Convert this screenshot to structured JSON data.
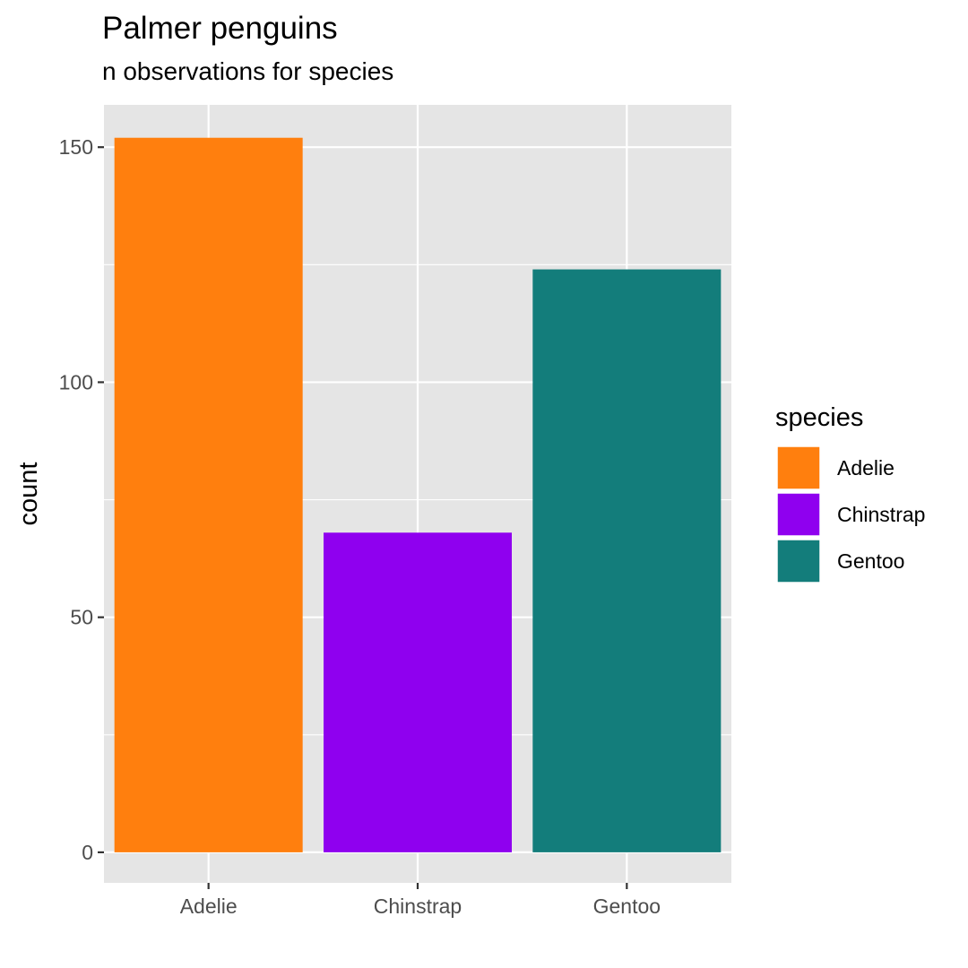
{
  "chart_data": {
    "type": "bar",
    "title": "Palmer penguins",
    "subtitle": "n observations for species",
    "xlabel": "",
    "ylabel": "count",
    "categories": [
      "Adelie",
      "Chinstrap",
      "Gentoo"
    ],
    "values": [
      152,
      68,
      124
    ],
    "ylim": [
      -6.5,
      159
    ],
    "yticks": [
      0,
      50,
      100,
      150
    ],
    "ytick_labels": [
      "0",
      "50",
      "100",
      "150"
    ],
    "grid": true,
    "legend": {
      "title": "species",
      "placement": "right",
      "entries": [
        "Adelie",
        "Chinstrap",
        "Gentoo"
      ]
    },
    "colors": {
      "Adelie": "#ff7f0e",
      "Chinstrap": "#8f00ef",
      "Gentoo": "#137d7b",
      "panel_background": "#e5e5e5",
      "grid_line": "#ffffff",
      "axis_text": "#4d4d4d",
      "tick_mark": "#333333"
    }
  }
}
